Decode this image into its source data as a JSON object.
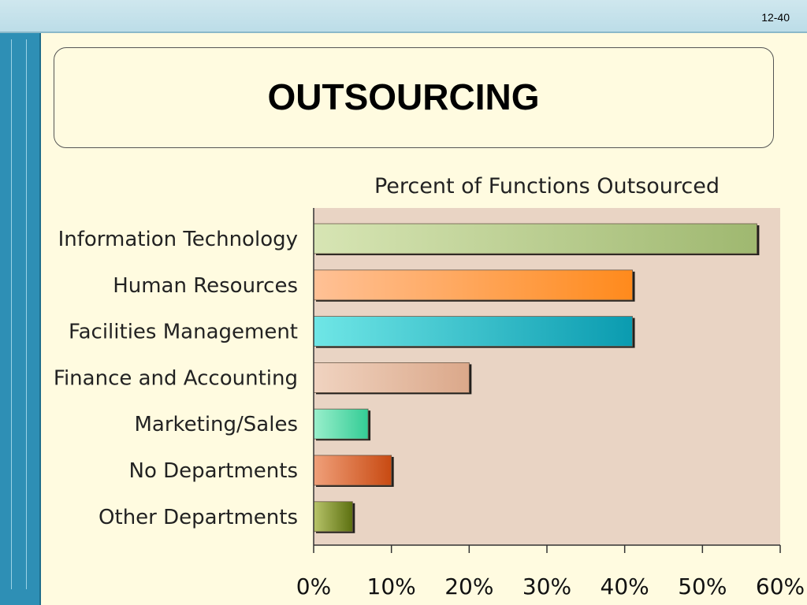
{
  "slide": {
    "number": "12-40",
    "title": "OUTSOURCING"
  },
  "chart_data": {
    "type": "bar",
    "orientation": "horizontal",
    "title": "Percent of Functions Outsourced",
    "xlabel": "",
    "ylabel": "",
    "categories": [
      "Information Technology",
      "Human Resources",
      "Facilities Management",
      "Finance and Accounting",
      "Marketing/Sales",
      "No Departments",
      "Other Departments"
    ],
    "values": [
      57,
      41,
      41,
      20,
      7,
      10,
      5
    ],
    "xlim": [
      0,
      60
    ],
    "ticks": [
      "0%",
      "10%",
      "20%",
      "30%",
      "40%",
      "50%",
      "60%"
    ],
    "tick_values": [
      0,
      10,
      20,
      30,
      40,
      50,
      60
    ],
    "grid": false,
    "legend": "none",
    "bar_colors": [
      [
        "#d7e5b4",
        "#9fb870"
      ],
      [
        "#ffc196",
        "#ff8a1c"
      ],
      [
        "#6fe6e6",
        "#0a9bb0"
      ],
      [
        "#f0d3c0",
        "#dba88a"
      ],
      [
        "#9aefcc",
        "#33cc95"
      ],
      [
        "#f0a07a",
        "#c84a12"
      ],
      [
        "#b8c46a",
        "#5c7010"
      ]
    ],
    "plot_background": "#e9d4c4"
  }
}
